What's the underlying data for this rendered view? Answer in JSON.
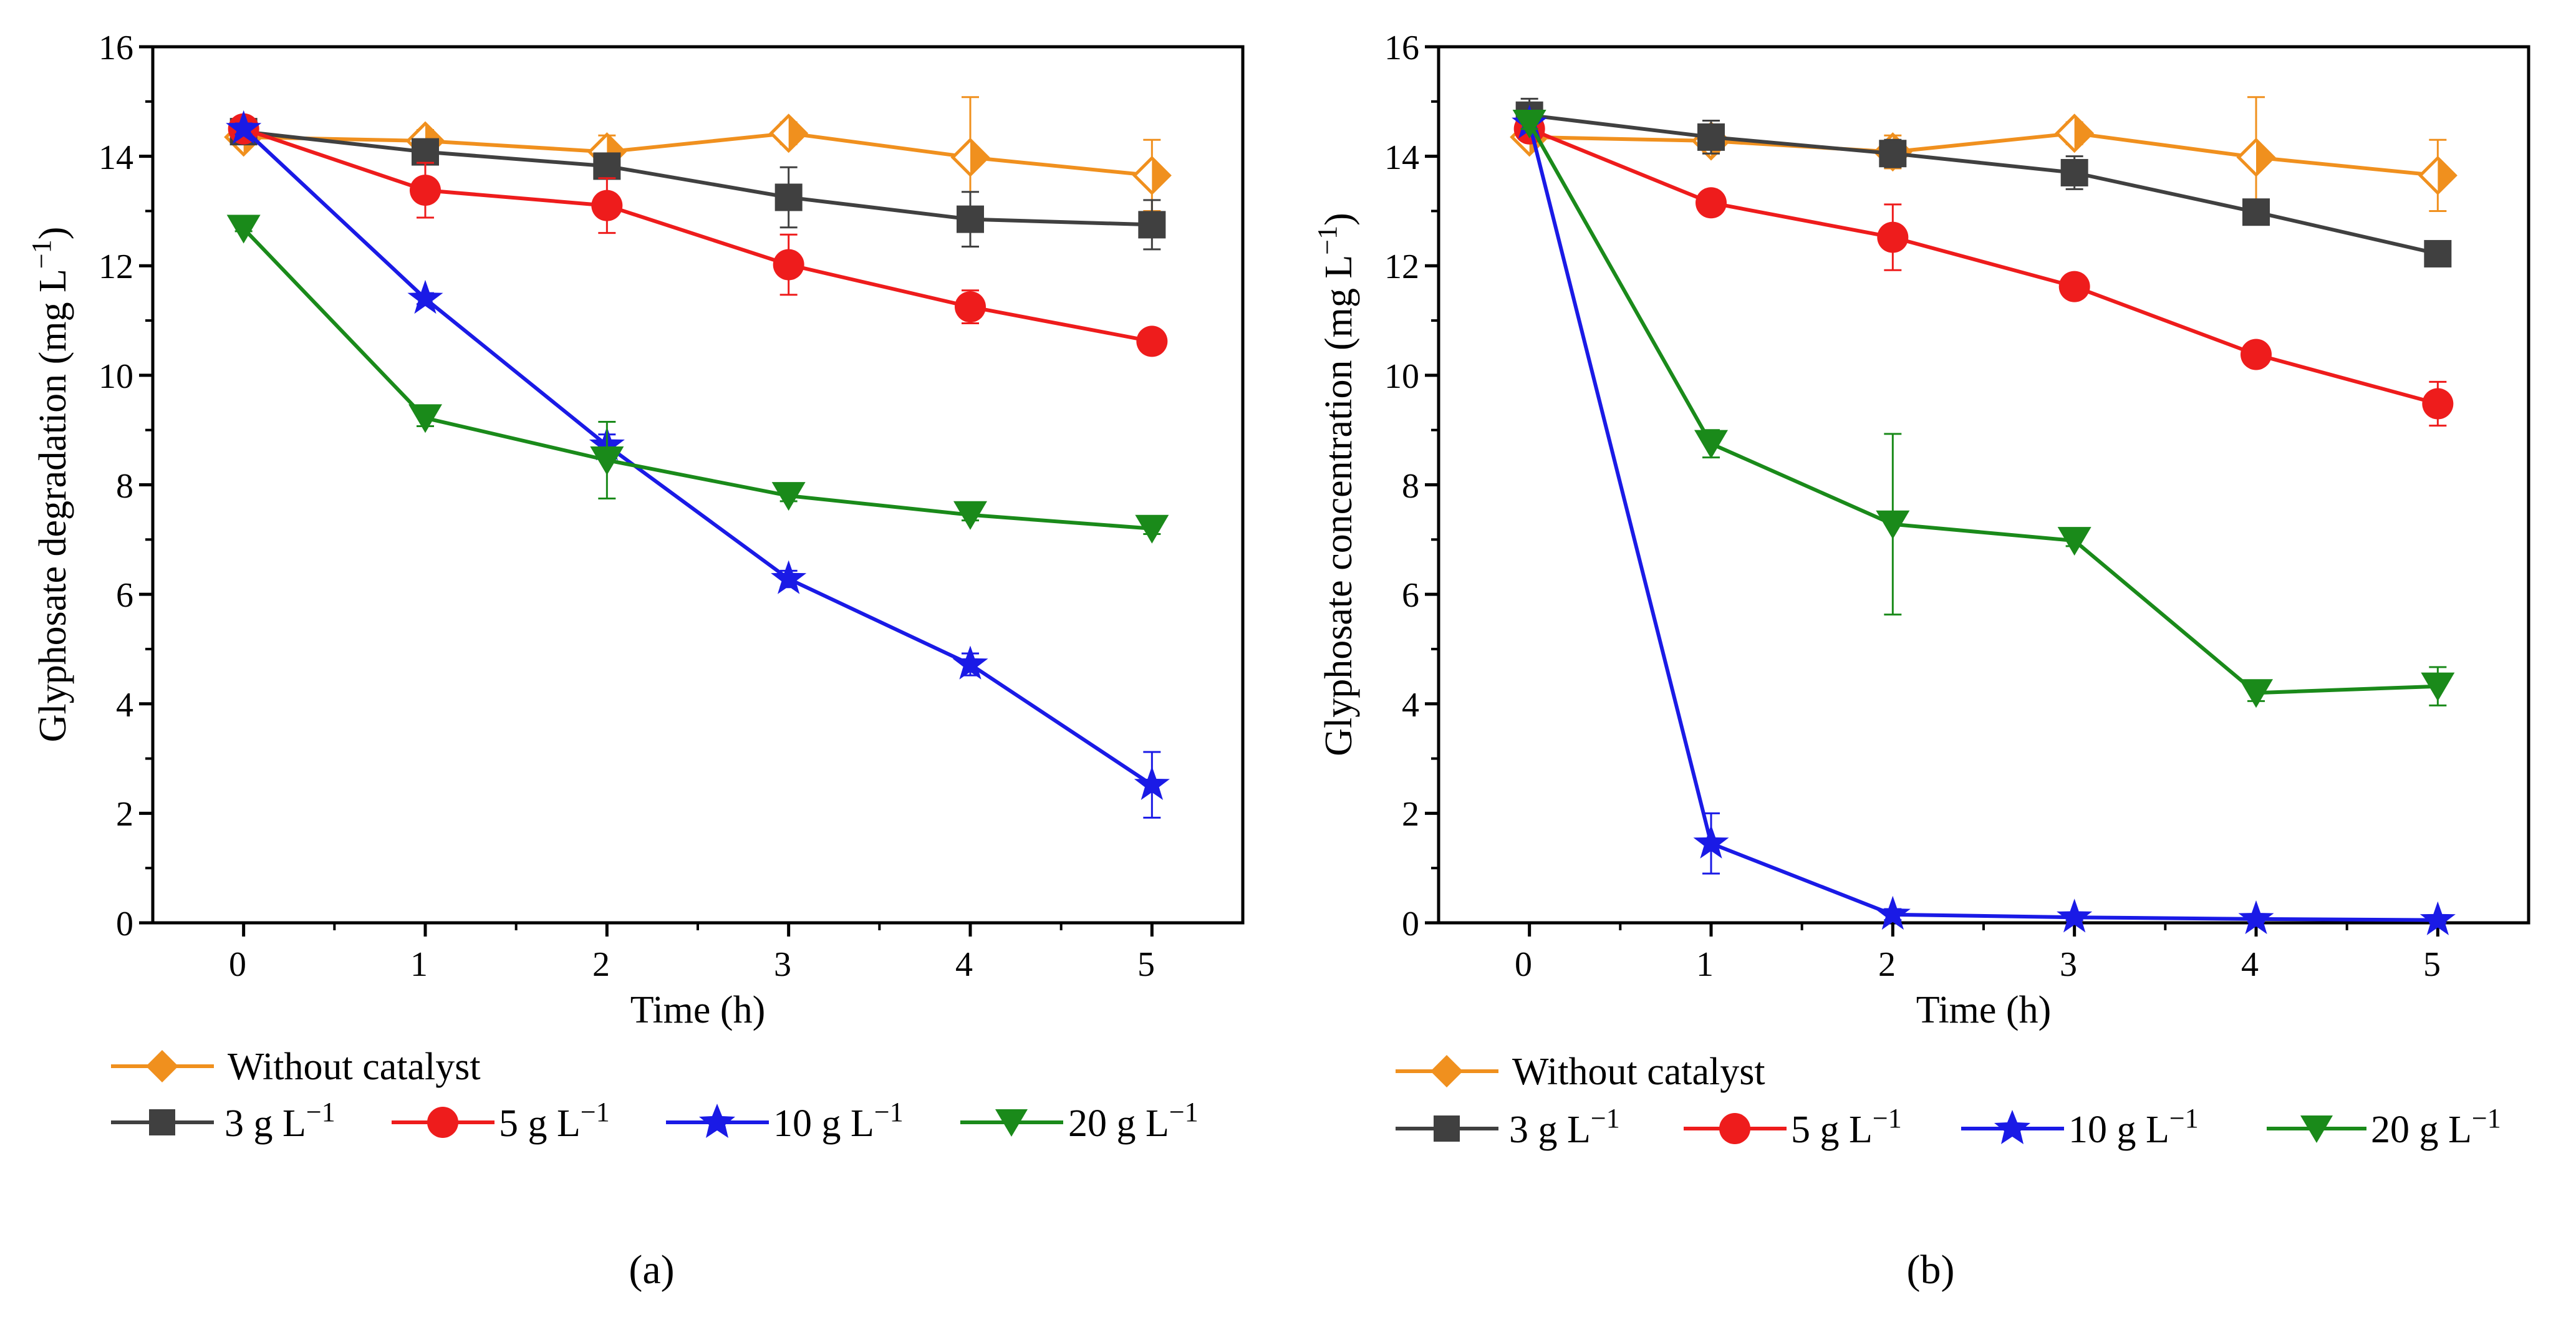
{
  "figure": {
    "caption_a": "(a)",
    "caption_b": "(b)"
  },
  "colors": {
    "without_catalyst": "#F0901E",
    "g3": "#404040",
    "g5": "#EE1C1C",
    "g10": "#1A1AE6",
    "g20": "#1A8A1A"
  },
  "legend": {
    "without_catalyst": "Without catalyst",
    "g3_num": "3 g L",
    "g3_exp": "−1",
    "g5_num": "5 g L",
    "g5_exp": "−1",
    "g10_num": "10 g L",
    "g10_exp": "−1",
    "g20_num": "20 g L",
    "g20_exp": "−1"
  },
  "chart_data": [
    {
      "type": "line",
      "panel": "(a)",
      "xlabel": "Time (h)",
      "ylabel": "Glyphosate degradation (mg L",
      "ylabel_exp": "−1",
      "ylabel_close": ")",
      "x": [
        0,
        1,
        2,
        3,
        4,
        5
      ],
      "xticks": [
        "0",
        "1",
        "2",
        "3",
        "4",
        "5"
      ],
      "yticks": [
        "0",
        "2",
        "4",
        "6",
        "8",
        "10",
        "12",
        "14",
        "16"
      ],
      "xlim": [
        -0.5,
        5.5
      ],
      "ylim": [
        0,
        16
      ],
      "series": [
        {
          "key": "without_catalyst",
          "name": "Without catalyst",
          "marker": "diamond",
          "values": [
            14.35,
            14.28,
            14.08,
            14.42,
            13.98,
            13.65
          ],
          "errors": [
            0.15,
            0.2,
            0.3,
            0.2,
            1.1,
            0.65
          ]
        },
        {
          "key": "g3",
          "name": "3 g L−1",
          "marker": "square",
          "values": [
            14.45,
            14.08,
            13.82,
            13.25,
            12.85,
            12.75
          ],
          "errors": [
            0.1,
            0.2,
            0.2,
            0.55,
            0.5,
            0.45
          ]
        },
        {
          "key": "g5",
          "name": "5 g L−1",
          "marker": "circle",
          "values": [
            14.5,
            13.38,
            13.1,
            12.02,
            11.25,
            10.62
          ],
          "errors": [
            0.1,
            0.5,
            0.5,
            0.55,
            0.3,
            0.15
          ]
        },
        {
          "key": "g10",
          "name": "10 g L−1",
          "marker": "star",
          "values": [
            14.5,
            11.4,
            8.72,
            6.28,
            4.72,
            2.52
          ],
          "errors": [
            0.1,
            0.1,
            0.2,
            0.15,
            0.2,
            0.6
          ]
        },
        {
          "key": "g20",
          "name": "20 g L−1",
          "marker": "triangle-down",
          "values": [
            12.68,
            9.22,
            8.45,
            7.8,
            7.45,
            7.2
          ],
          "errors": [
            0.05,
            0.15,
            0.7,
            0.1,
            0.1,
            0.1
          ]
        }
      ]
    },
    {
      "type": "line",
      "panel": "(b)",
      "xlabel": "Time (h)",
      "ylabel": "Glyphosate concentration (mg L",
      "ylabel_exp": "−1",
      "ylabel_close": ")",
      "x": [
        0,
        1,
        2,
        3,
        4,
        5
      ],
      "xticks": [
        "0",
        "1",
        "2",
        "3",
        "4",
        "5"
      ],
      "yticks": [
        "0",
        "2",
        "4",
        "6",
        "8",
        "10",
        "12",
        "14",
        "16"
      ],
      "xlim": [
        -0.5,
        5.5
      ],
      "ylim": [
        0,
        16
      ],
      "series": [
        {
          "key": "without_catalyst",
          "name": "Without catalyst",
          "marker": "diamond",
          "values": [
            14.35,
            14.28,
            14.08,
            14.42,
            13.98,
            13.65
          ],
          "errors": [
            0.15,
            0.2,
            0.3,
            0.2,
            1.1,
            0.65
          ]
        },
        {
          "key": "g3",
          "name": "3 g L−1",
          "marker": "square",
          "values": [
            14.75,
            14.35,
            14.05,
            13.7,
            12.98,
            12.22
          ],
          "errors": [
            0.3,
            0.3,
            0.25,
            0.3,
            0.2,
            0.15
          ]
        },
        {
          "key": "g5",
          "name": "5 g L−1",
          "marker": "circle",
          "values": [
            14.5,
            13.15,
            12.52,
            11.62,
            10.38,
            9.48
          ],
          "errors": [
            0.15,
            0.2,
            0.6,
            0.15,
            0.15,
            0.4
          ]
        },
        {
          "key": "g10",
          "name": "10 g L−1",
          "marker": "star",
          "values": [
            14.6,
            1.45,
            0.15,
            0.1,
            0.07,
            0.05
          ],
          "errors": [
            0.15,
            0.55,
            0.1,
            0.05,
            0.05,
            0.05
          ]
        },
        {
          "key": "g20",
          "name": "20 g L−1",
          "marker": "triangle-down",
          "values": [
            14.6,
            8.75,
            7.28,
            6.98,
            4.2,
            4.32
          ],
          "errors": [
            0.1,
            0.25,
            1.65,
            0.1,
            0.15,
            0.35
          ]
        }
      ]
    }
  ]
}
